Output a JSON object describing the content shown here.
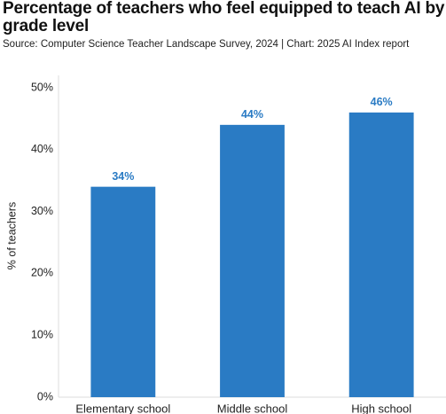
{
  "chart_data": {
    "type": "bar",
    "title": "Percentage of teachers who feel equipped to teach AI by grade level",
    "subtitle": "Source: Computer Science Teacher Landscape Survey, 2024 | Chart: 2025 AI Index report",
    "y_label": "% of teachers",
    "categories": [
      "Elementary school",
      "Middle school",
      "High school"
    ],
    "values": [
      34,
      44,
      46
    ],
    "value_labels": [
      "34%",
      "44%",
      "46%"
    ],
    "color": "#2a7bc4",
    "ylim": [
      0,
      52
    ],
    "yticks": [
      {
        "value": 0,
        "label": "0%"
      },
      {
        "value": 10,
        "label": "10%"
      },
      {
        "value": 20,
        "label": "20%"
      },
      {
        "value": 30,
        "label": "30%"
      },
      {
        "value": 40,
        "label": "40%"
      },
      {
        "value": 50,
        "label": "50%"
      }
    ],
    "grid": false
  }
}
